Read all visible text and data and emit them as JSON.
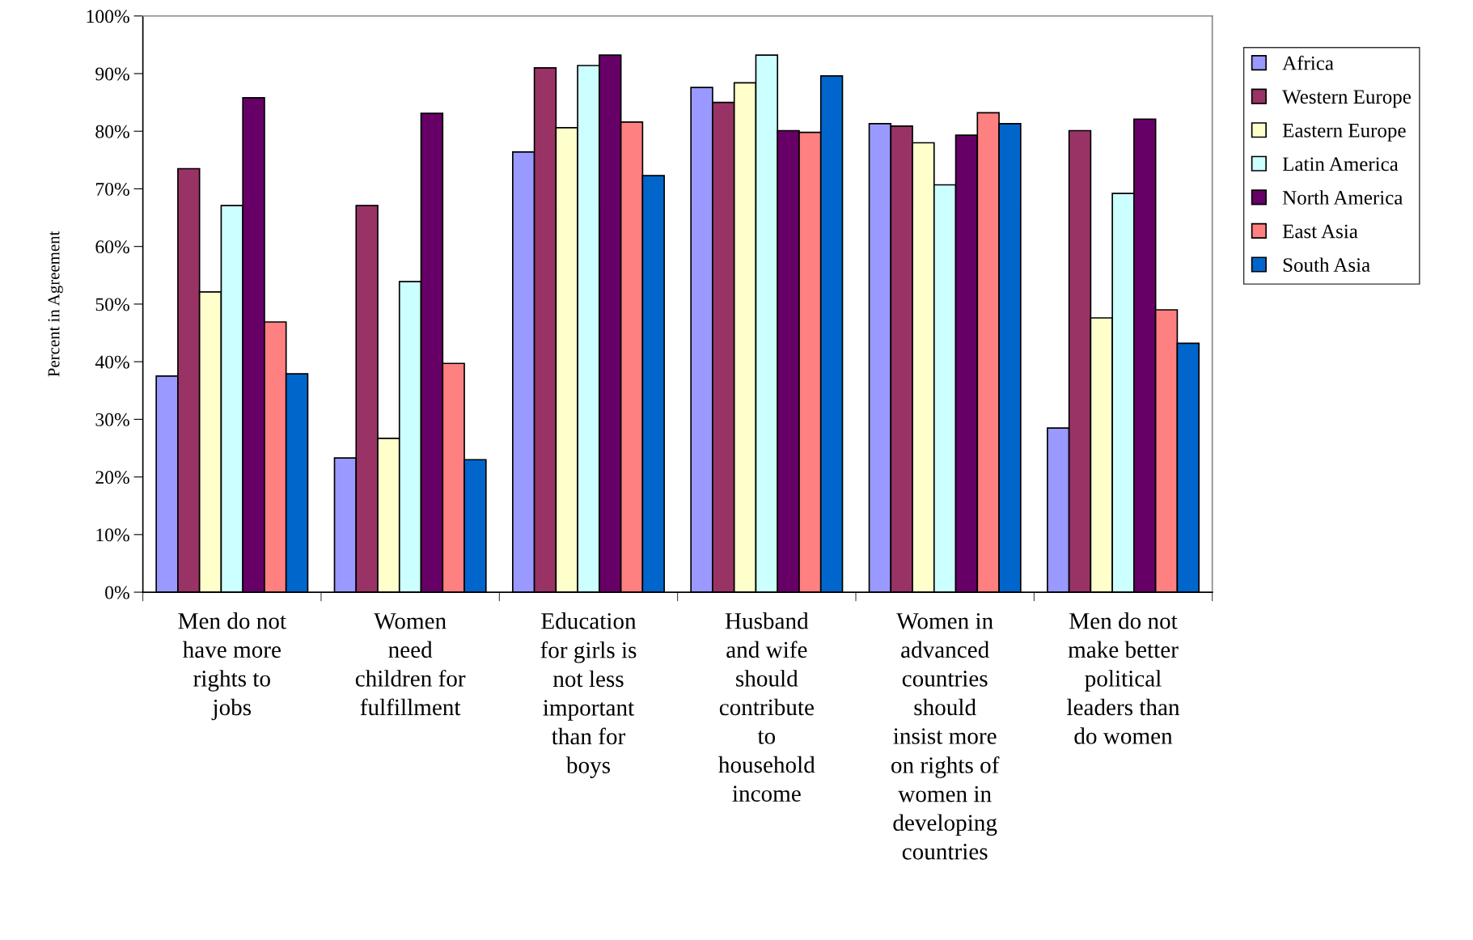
{
  "chart_data": {
    "type": "bar",
    "ylabel": "Percent in Agreement",
    "categories": [
      "Men do not\nhave more\nrights to\njobs",
      "Women\nneed\nchildren for\nfulfillment",
      "Education\nfor girls is\nnot less\nimportant\nthan for\nboys",
      "Husband\nand wife\nshould\ncontribute\nto\nhousehold\nincome",
      "Women in\nadvanced\ncountries\nshould\ninsist more\non rights of\nwomen in\ndeveloping\ncountries",
      "Men do not\nmake better\npolitical\nleaders than\ndo women"
    ],
    "series": [
      {
        "name": "Africa",
        "color": "#9999ff",
        "values": [
          37.5,
          23.3,
          76.4,
          87.6,
          81.3,
          28.5
        ]
      },
      {
        "name": "Western Europe",
        "color": "#993366",
        "values": [
          73.5,
          67.1,
          91.0,
          85.0,
          80.9,
          80.1
        ]
      },
      {
        "name": "Eastern Europe",
        "color": "#ffffcc",
        "values": [
          52.1,
          26.7,
          80.6,
          88.4,
          78.0,
          47.6
        ]
      },
      {
        "name": "Latin America",
        "color": "#ccffff",
        "values": [
          67.1,
          53.9,
          91.4,
          93.2,
          70.7,
          69.2
        ]
      },
      {
        "name": "North America",
        "color": "#660066",
        "values": [
          85.8,
          83.1,
          93.2,
          80.1,
          79.3,
          82.1
        ]
      },
      {
        "name": "East Asia",
        "color": "#ff8080",
        "values": [
          46.9,
          39.7,
          81.6,
          79.8,
          83.2,
          49.0
        ]
      },
      {
        "name": "South Asia",
        "color": "#0066cc",
        "values": [
          37.9,
          23.0,
          72.3,
          89.6,
          81.3,
          43.2
        ]
      }
    ],
    "ylim": [
      0,
      100
    ],
    "yticks": [
      {
        "value": 0,
        "label": "0%"
      },
      {
        "value": 10,
        "label": "10%"
      },
      {
        "value": 20,
        "label": "20%"
      },
      {
        "value": 30,
        "label": "30%"
      },
      {
        "value": 40,
        "label": "40%"
      },
      {
        "value": 50,
        "label": "50%"
      },
      {
        "value": 60,
        "label": "60%"
      },
      {
        "value": 70,
        "label": "70%"
      },
      {
        "value": 80,
        "label": "80%"
      },
      {
        "value": 90,
        "label": "90%"
      },
      {
        "value": 100,
        "label": "100%"
      }
    ],
    "grid": false,
    "legend": "right"
  }
}
